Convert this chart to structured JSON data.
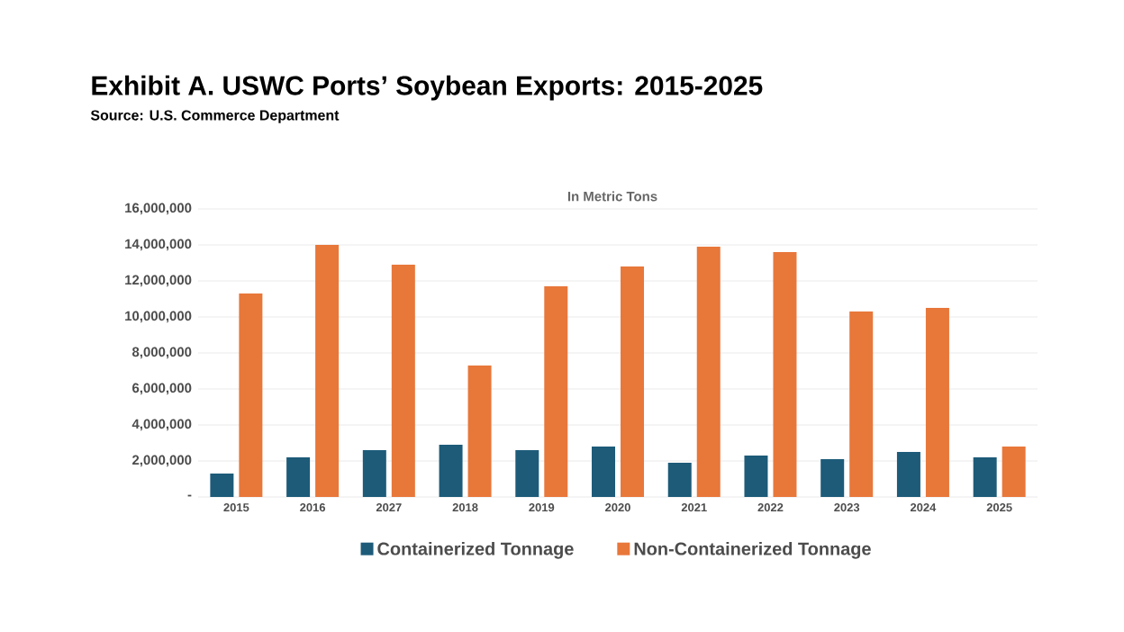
{
  "chart_data": {
    "type": "bar",
    "title": "Exhibit A. USWC Ports’ Soybean Exports: 2015-2025",
    "subtitle": "In Metric Tons",
    "annotations": [
      "Source: U.S. Commerce Department"
    ],
    "categories": [
      "2015",
      "2016",
      "2027",
      "2018",
      "2019",
      "2020",
      "2021",
      "2022",
      "2023",
      "2024",
      "2025"
    ],
    "series": [
      {
        "name": "Containerized Tonnage",
        "color": "#1d5b79",
        "values": [
          1300000,
          2200000,
          2600000,
          2900000,
          2600000,
          2800000,
          1900000,
          2300000,
          2100000,
          2500000,
          2200000
        ]
      },
      {
        "name": "Non-Containerized Tonnage",
        "color": "#e8773a",
        "values": [
          11300000,
          14000000,
          12900000,
          7300000,
          11700000,
          12800000,
          13900000,
          13600000,
          10300000,
          10500000,
          2800000
        ]
      }
    ],
    "ylim": [
      0,
      16000000
    ],
    "yticks": [
      {
        "value": 0,
        "label": "-"
      },
      {
        "value": 2000000,
        "label": "2,000,000"
      },
      {
        "value": 4000000,
        "label": "4,000,000"
      },
      {
        "value": 6000000,
        "label": "6,000,000"
      },
      {
        "value": 8000000,
        "label": "8,000,000"
      },
      {
        "value": 10000000,
        "label": "10,000,000"
      },
      {
        "value": 12000000,
        "label": "12,000,000"
      },
      {
        "value": 14000000,
        "label": "14,000,000"
      },
      {
        "value": 16000000,
        "label": "16,000,000"
      }
    ],
    "grid": "y",
    "legend": "bottom"
  }
}
